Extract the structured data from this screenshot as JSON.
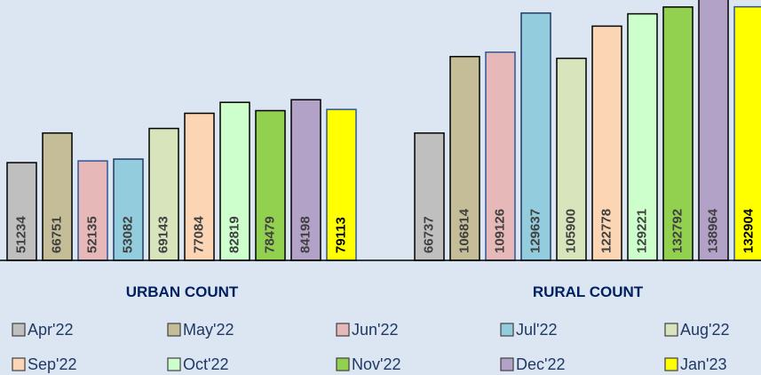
{
  "chart_data": {
    "type": "bar",
    "categories": [
      "URBAN COUNT",
      "RURAL COUNT"
    ],
    "series": [
      {
        "name": "Apr'22",
        "color": "#bfbfbf",
        "edgecolor": "#000000",
        "values": [
          51234,
          66737
        ]
      },
      {
        "name": "May'22",
        "color": "#c4bd97",
        "edgecolor": "#000000",
        "values": [
          66751,
          106814
        ]
      },
      {
        "name": "Jun'22",
        "color": "#e6b9b8",
        "edgecolor": "#2f5597",
        "values": [
          52135,
          109126
        ]
      },
      {
        "name": "Jul'22",
        "color": "#93cddd",
        "edgecolor": "#1f3864",
        "values": [
          53082,
          129637
        ]
      },
      {
        "name": "Aug'22",
        "color": "#d7e4bc",
        "edgecolor": "#000000",
        "values": [
          69143,
          105900
        ]
      },
      {
        "name": "Sep'22",
        "color": "#fcd5b5",
        "edgecolor": "#000000",
        "values": [
          77084,
          122778
        ]
      },
      {
        "name": "Oct'22",
        "color": "#ccffcc",
        "edgecolor": "#000000",
        "values": [
          82819,
          129221
        ]
      },
      {
        "name": "Nov'22",
        "color": "#92d050",
        "edgecolor": "#000000",
        "values": [
          78479,
          132792
        ]
      },
      {
        "name": "Dec'22",
        "color": "#b3a2c7",
        "edgecolor": "#000000",
        "values": [
          84198,
          138964
        ]
      },
      {
        "name": "Jan'23",
        "color": "#ffff00",
        "edgecolor": "#2f5597",
        "values": [
          79113,
          132904
        ]
      }
    ]
  }
}
